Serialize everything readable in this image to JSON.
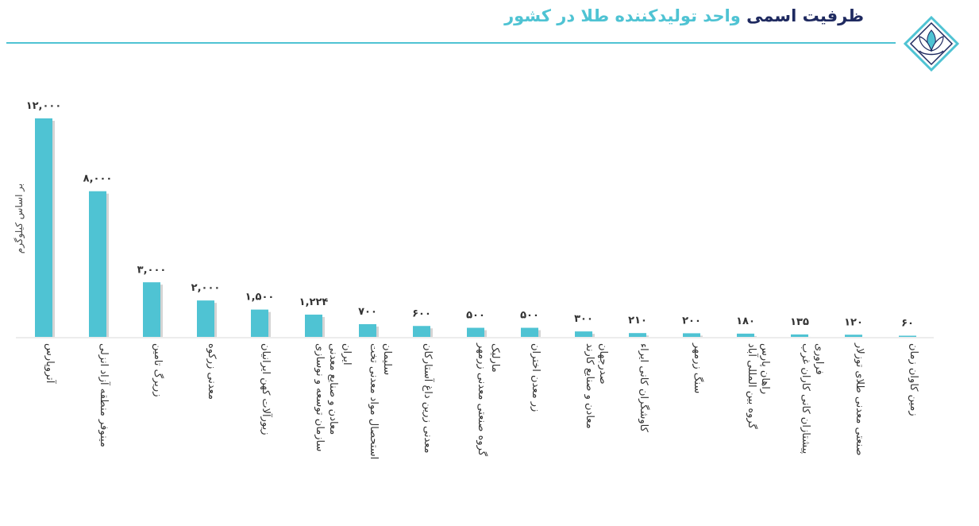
{
  "header": {
    "title_dark": "ظرفیت اسمی",
    "title_accent": "واحد تولیدکننده طلا در کشور"
  },
  "colors": {
    "bar": "#4fc3d3",
    "title_dark": "#1f2a60",
    "title_accent": "#4fc3d3"
  },
  "logo": {
    "icon": "lotus-emblem-icon"
  },
  "chart_data": {
    "type": "bar",
    "ylabel": "بر اساس کیلوگرم",
    "ylim": [
      0,
      12000
    ],
    "grid": false,
    "categories": [
      "آتروپارس",
      "مینوفر منطقه آزاد انزلی",
      "زریرگ تامین",
      "معدنی زرکوه",
      "زیورآلات کهن ایرانیان",
      "سازمان توسعه و نوسازی معادن و صنایع معدنی ایران",
      "استحصال مواد معدنی تخت سلیمان",
      "معدنی زرین داغ آستارکان",
      "گروه صنعتی معدنی زرمهر مارلیک",
      "زر معدن اختران",
      "معادن و صنایع کارند صدرجهان",
      "کاوشگران کانی ایراء",
      "سنگ زرمهر",
      "گروه بین المللی آباد راهان پارس",
      "پیشتازان کانی کاران غرب فراوری",
      "صنعتی معدنی طلای توزلار",
      "زمین کاوان زمان"
    ],
    "values": [
      12000,
      8000,
      3000,
      2000,
      1500,
      1224,
      700,
      600,
      500,
      500,
      300,
      210,
      200,
      180,
      135,
      120,
      60
    ],
    "value_labels": [
      "۱۲,۰۰۰",
      "۸,۰۰۰",
      "۳,۰۰۰",
      "۲,۰۰۰",
      "۱,۵۰۰",
      "۱,۲۲۴",
      "۷۰۰",
      "۶۰۰",
      "۵۰۰",
      "۵۰۰",
      "۳۰۰",
      "۲۱۰",
      "۲۰۰",
      "۱۸۰",
      "۱۳۵",
      "۱۲۰",
      "۶۰"
    ]
  }
}
